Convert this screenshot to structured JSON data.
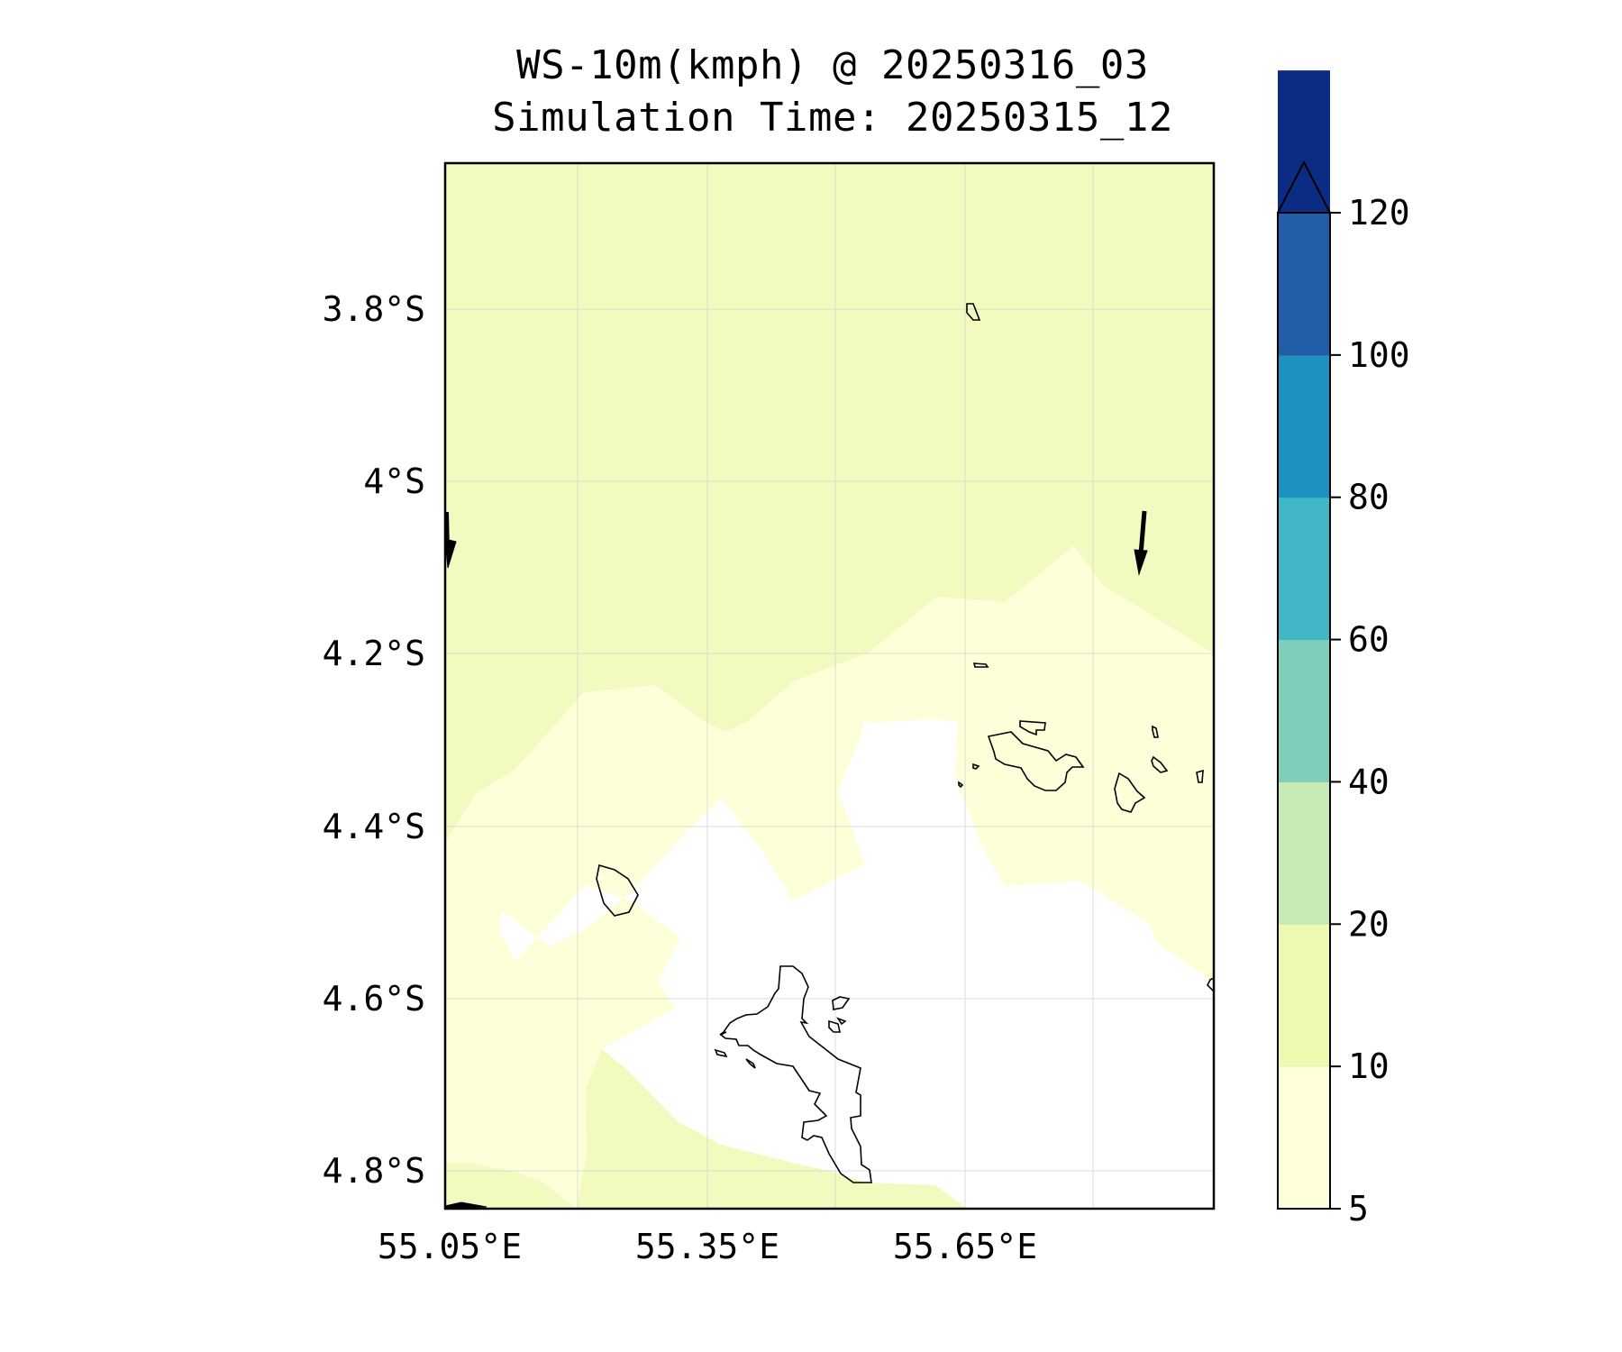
{
  "title": {
    "line1": "WS-10m(kmph) @ 20250316_03",
    "line2": "Simulation Time: 20250315_12"
  },
  "map": {
    "lat_ticks": [
      "3.8°S",
      "4°S",
      "4.2°S",
      "4.4°S",
      "4.6°S",
      "4.8°S"
    ],
    "lon_ticks": [
      "55.05°E",
      "55.35°E",
      "55.65°E"
    ]
  },
  "colorbar": {
    "ticks": [
      "5",
      "10",
      "20",
      "40",
      "60",
      "80",
      "100",
      "120"
    ],
    "colors": [
      "#ffffd9",
      "#edf8b1",
      "#c7e9b4",
      "#7fcdbb",
      "#41b6c4",
      "#1d91c0",
      "#225ea8",
      "#0c2c84"
    ],
    "extend_color": "#081d58"
  },
  "fill_colors": {
    "below_5": "#ffffff",
    "band_5_10": "#fcffd8",
    "band_10_20": "#f2fac0"
  }
}
